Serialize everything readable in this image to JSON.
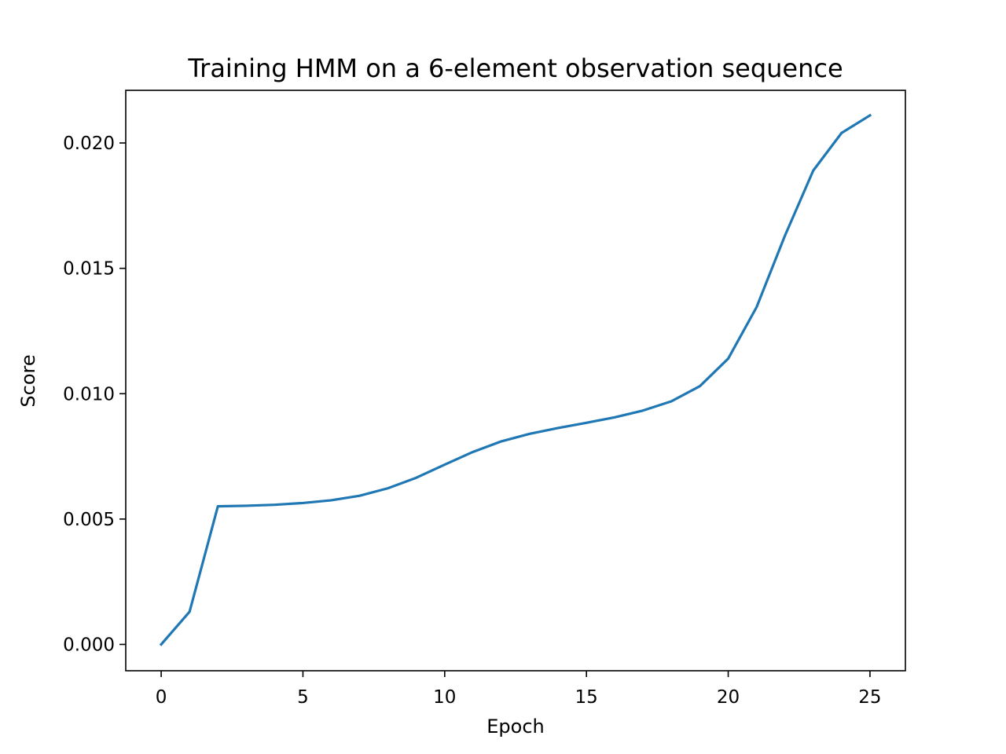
{
  "chart_data": {
    "type": "line",
    "title": "Training HMM on a 6-element observation sequence",
    "xlabel": "Epoch",
    "ylabel": "Score",
    "xlim": [
      -1.25,
      26.25
    ],
    "ylim": [
      -0.00105,
      0.0221
    ],
    "grid": false,
    "x_ticks": [
      {
        "value": 0,
        "label": "0"
      },
      {
        "value": 5,
        "label": "5"
      },
      {
        "value": 10,
        "label": "10"
      },
      {
        "value": 15,
        "label": "15"
      },
      {
        "value": 20,
        "label": "20"
      },
      {
        "value": 25,
        "label": "25"
      }
    ],
    "y_ticks": [
      {
        "value": 0.0,
        "label": "0.000"
      },
      {
        "value": 0.005,
        "label": "0.005"
      },
      {
        "value": 0.01,
        "label": "0.010"
      },
      {
        "value": 0.015,
        "label": "0.015"
      },
      {
        "value": 0.02,
        "label": "0.020"
      }
    ],
    "series": [
      {
        "color": "#1f77b4",
        "x": [
          0,
          1,
          2,
          3,
          4,
          5,
          6,
          7,
          8,
          9,
          10,
          11,
          12,
          13,
          14,
          15,
          16,
          17,
          18,
          19,
          20,
          21,
          22,
          23,
          24,
          25
        ],
        "y": [
          0.0,
          0.0013,
          0.00551,
          0.00553,
          0.00557,
          0.00564,
          0.00575,
          0.00593,
          0.00623,
          0.00665,
          0.00717,
          0.00768,
          0.0081,
          0.0084,
          0.00863,
          0.00884,
          0.00906,
          0.00933,
          0.0097,
          0.0103,
          0.0114,
          0.01345,
          0.0163,
          0.0189,
          0.0204,
          0.0211
        ]
      }
    ]
  }
}
